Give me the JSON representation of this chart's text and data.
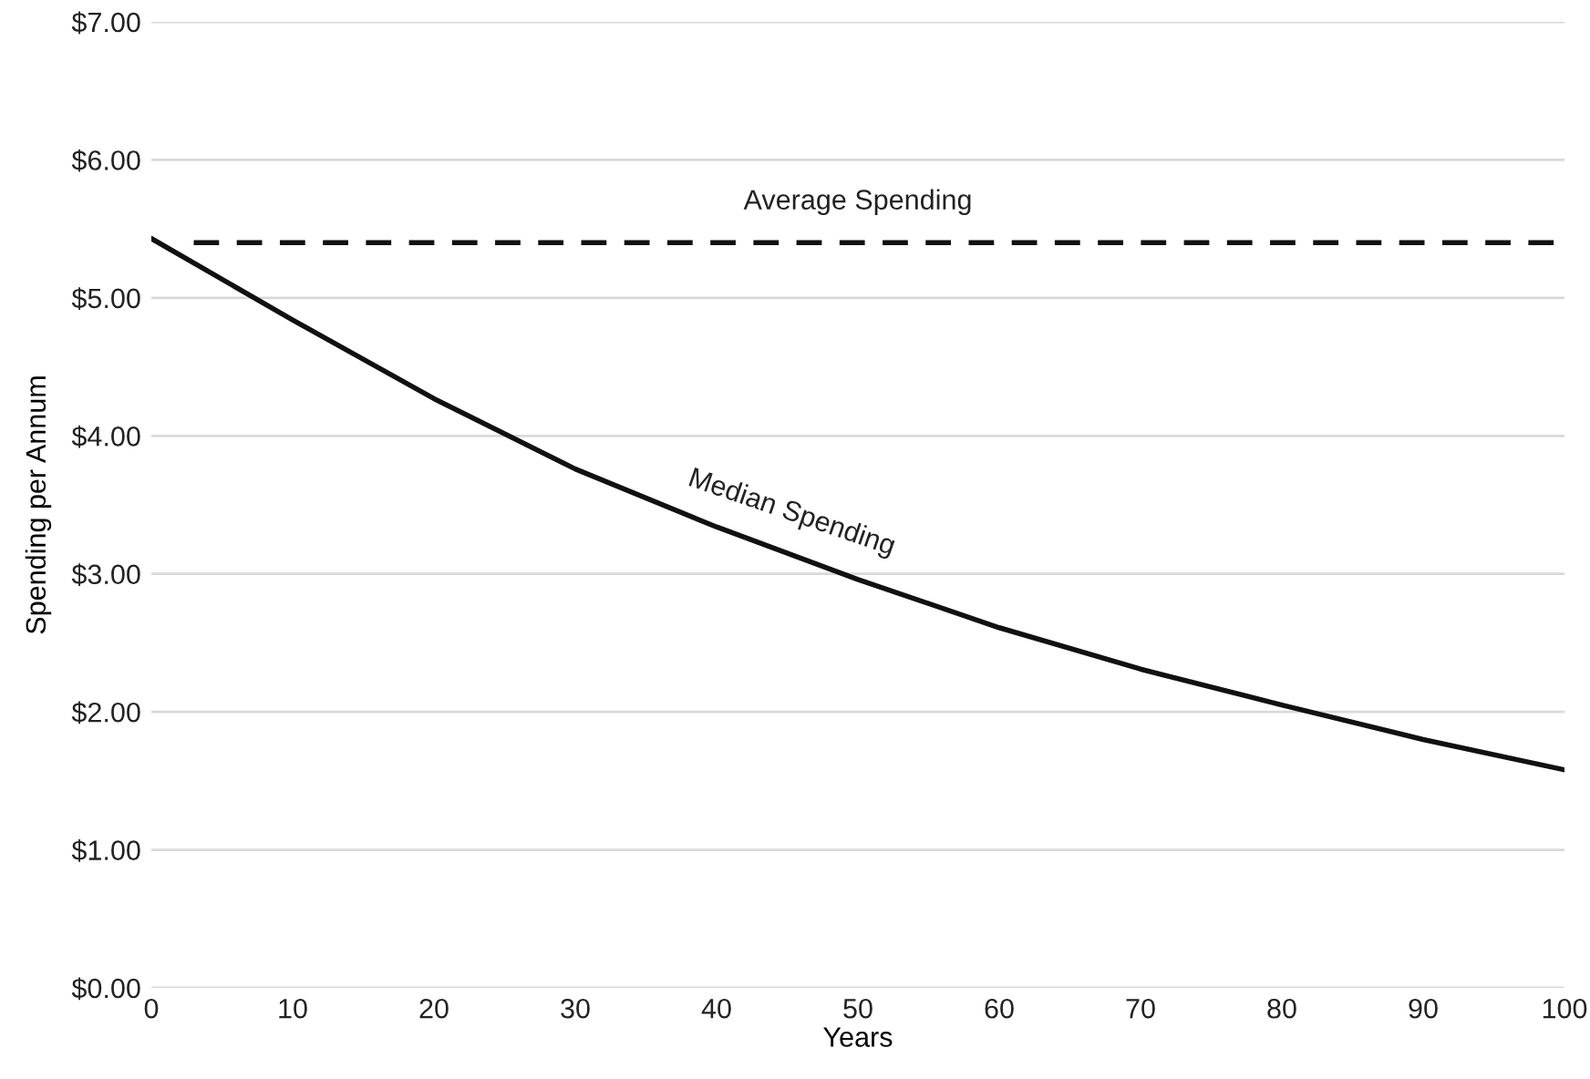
{
  "chart_data": {
    "type": "line",
    "xlabel": "Years",
    "ylabel": "Spending per Annum",
    "x": [
      0,
      10,
      20,
      30,
      40,
      50,
      60,
      70,
      80,
      90,
      100
    ],
    "series": [
      {
        "color": "#111111",
        "values": [
          5.43,
          4.84,
          4.27,
          3.76,
          3.34,
          2.96,
          2.61,
          2.31,
          2.05,
          1.8,
          1.58
        ]
      }
    ],
    "annotations": [
      {
        "text": "Median Spending",
        "x": 45,
        "y": 3.15
      }
    ],
    "ref_lines": [
      {
        "axis": "y",
        "value": 5.4,
        "label": "Average Spending",
        "color": "#111111",
        "line_style": "dashed"
      }
    ],
    "xlim": [
      0,
      100
    ],
    "xticks": [
      0,
      10,
      20,
      30,
      40,
      50,
      60,
      70,
      80,
      90,
      100
    ],
    "ylim": [
      0,
      7
    ],
    "yticks": [
      {
        "value": 0,
        "label": "$0.00"
      },
      {
        "value": 1,
        "label": "$1.00"
      },
      {
        "value": 2,
        "label": "$2.00"
      },
      {
        "value": 3,
        "label": "$3.00"
      },
      {
        "value": 4,
        "label": "$4.00"
      },
      {
        "value": 5,
        "label": "$5.00"
      },
      {
        "value": 6,
        "label": "$6.00"
      },
      {
        "value": 7,
        "label": "$7.00"
      }
    ],
    "grid": "y",
    "line_style": "solid"
  }
}
